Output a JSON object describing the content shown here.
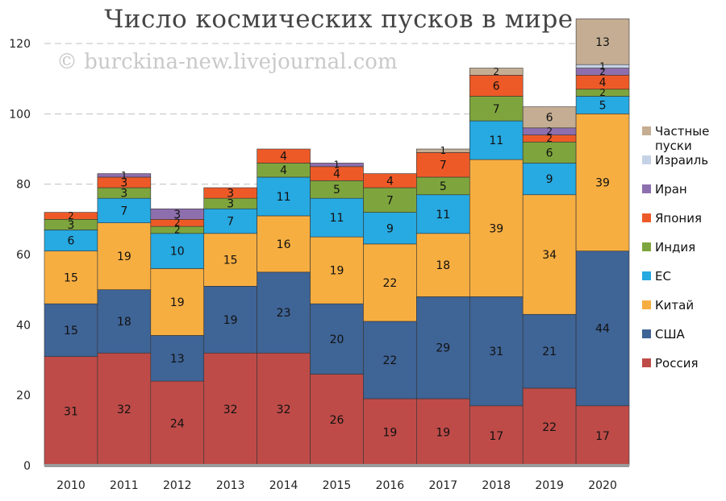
{
  "chart_data": {
    "type": "bar",
    "stacked": true,
    "title": "Число космических пусков в мире",
    "watermark": "© burckina-new.livejournal.com",
    "categories": [
      "2010",
      "2011",
      "2012",
      "2013",
      "2014",
      "2015",
      "2016",
      "2017",
      "2018",
      "2019",
      "2020"
    ],
    "ylim": [
      0,
      120
    ],
    "yticks": [
      0,
      20,
      40,
      60,
      80,
      100,
      120
    ],
    "grid": "horizontal-dashed",
    "legend_position": "right",
    "series": [
      {
        "name": "Россия",
        "color": "#be4b48",
        "values": [
          31,
          32,
          24,
          32,
          32,
          26,
          19,
          19,
          17,
          22,
          17
        ]
      },
      {
        "name": "США",
        "color": "#3f6496",
        "values": [
          15,
          18,
          13,
          19,
          23,
          20,
          22,
          29,
          31,
          21,
          44
        ]
      },
      {
        "name": "Китай",
        "color": "#f7ae41",
        "values": [
          15,
          19,
          19,
          15,
          16,
          19,
          22,
          18,
          39,
          34,
          39
        ]
      },
      {
        "name": "ЕС",
        "color": "#27a9e1",
        "values": [
          6,
          7,
          10,
          7,
          11,
          11,
          9,
          11,
          11,
          9,
          5
        ]
      },
      {
        "name": "Индия",
        "color": "#7ea53d",
        "values": [
          3,
          3,
          2,
          3,
          4,
          5,
          7,
          5,
          7,
          6,
          2
        ]
      },
      {
        "name": "Япония",
        "color": "#ee5a27",
        "values": [
          2,
          3,
          2,
          3,
          4,
          4,
          4,
          7,
          6,
          2,
          4
        ]
      },
      {
        "name": "Иран",
        "color": "#8e6fae",
        "values": [
          0,
          1,
          3,
          0,
          0,
          1,
          0,
          0,
          0,
          2,
          2
        ]
      },
      {
        "name": "Израиль",
        "color": "#c5d2e6",
        "values": [
          0,
          0,
          0,
          0,
          0,
          0,
          0,
          0,
          0,
          0,
          1
        ]
      },
      {
        "name": "Частные пуски",
        "color": "#c4ad92",
        "values": [
          0,
          0,
          0,
          0,
          0,
          0,
          0,
          1,
          2,
          6,
          13
        ]
      }
    ]
  }
}
